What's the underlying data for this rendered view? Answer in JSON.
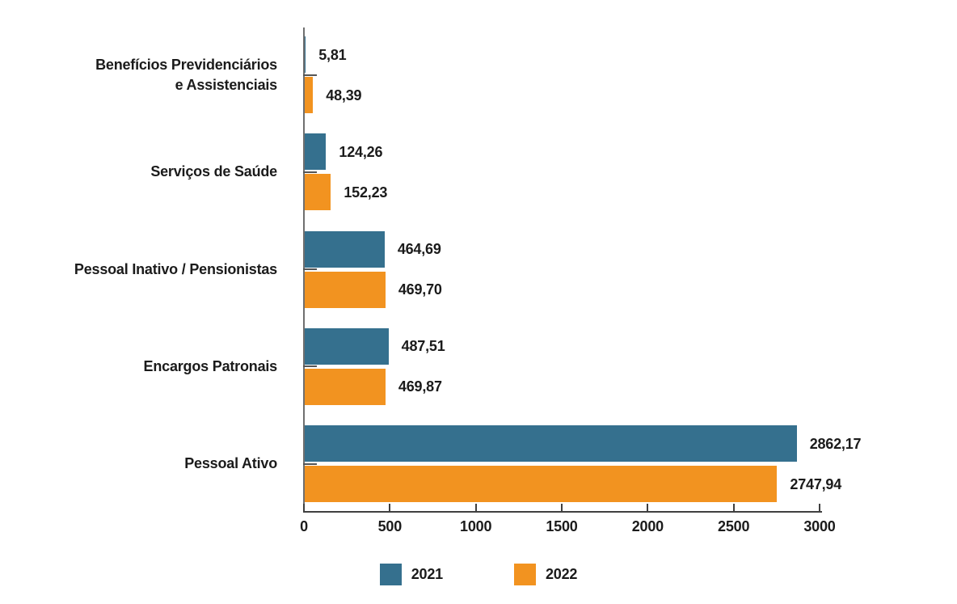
{
  "chart_data": {
    "type": "bar",
    "orientation": "horizontal",
    "title": "",
    "categories": [
      "Benefícios Previdenciários e Assistenciais",
      "Serviços de Saúde",
      "Pessoal Inativo / Pensionistas",
      "Encargos Patronais",
      "Pessoal Ativo"
    ],
    "category_label_lines": [
      [
        "Benefícios Previdenciários",
        "e Assistenciais"
      ],
      [
        "Serviços de Saúde"
      ],
      [
        "Pessoal Inativo / Pensionistas"
      ],
      [
        "Encargos Patronais"
      ],
      [
        "Pessoal Ativo"
      ]
    ],
    "series": [
      {
        "name": "2021",
        "color": "#35708E",
        "values": [
          5.81,
          124.26,
          464.69,
          487.51,
          2862.17
        ],
        "value_labels": [
          "5,81",
          "124,26",
          "464,69",
          "487,51",
          "2862,17"
        ]
      },
      {
        "name": "2022",
        "color": "#F29320",
        "values": [
          48.39,
          152.23,
          469.7,
          469.87,
          2747.94
        ],
        "value_labels": [
          "48,39",
          "152,23",
          "469,70",
          "469,87",
          "2747,94"
        ]
      }
    ],
    "x_axis": {
      "min": 0,
      "max": 3000,
      "tick_values": [
        0,
        500,
        1000,
        1500,
        2000,
        2500,
        3000
      ],
      "tick_labels": [
        "0",
        "500",
        "1000",
        "1500",
        "2000",
        "2500",
        "3000"
      ]
    },
    "legend": {
      "position": "bottom",
      "items": [
        {
          "label": "2021",
          "color": "#35708E"
        },
        {
          "label": "2022",
          "color": "#F29320"
        }
      ]
    },
    "grid": false,
    "decimal_separator": ","
  },
  "colors": {
    "series_2021": "#35708E",
    "series_2022": "#F29320",
    "bottom_axis": "#404040",
    "left_spine": "#6F6F6F",
    "text": "#1B1B1B",
    "background": "#FFFFFF"
  }
}
